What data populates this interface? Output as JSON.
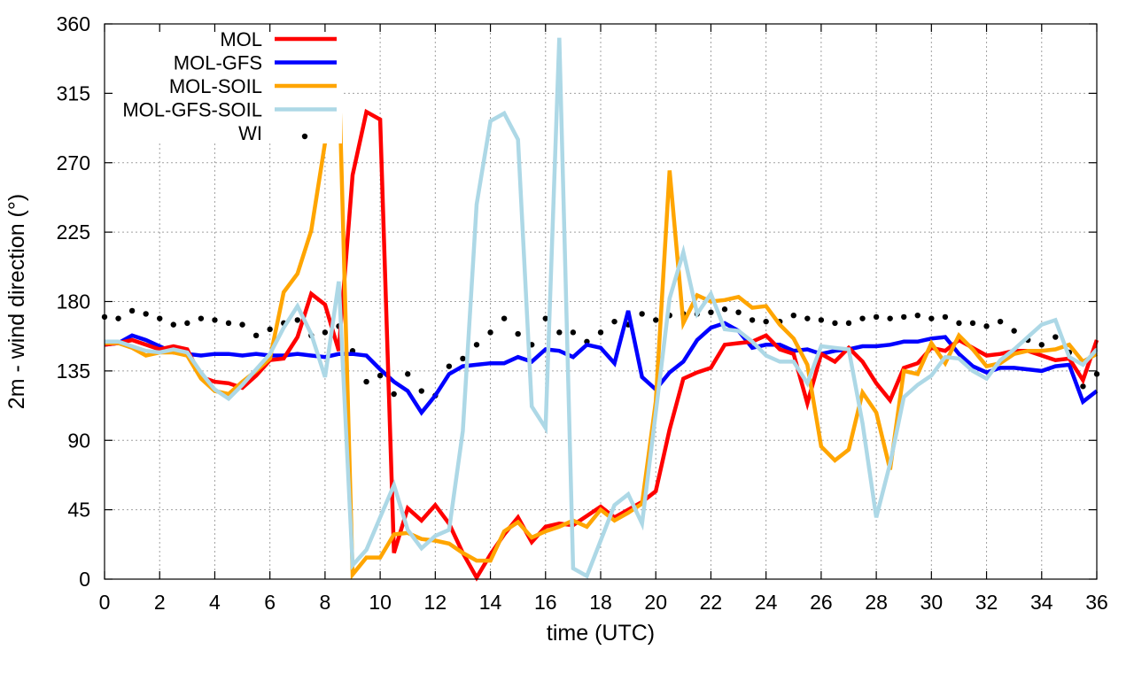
{
  "chart_data": {
    "type": "line",
    "title": "",
    "xlabel": "time (UTC)",
    "ylabel": "2m - wind direction (°)",
    "xlim": [
      0,
      36
    ],
    "ylim": [
      0,
      360
    ],
    "xticks": [
      0,
      2,
      4,
      6,
      8,
      10,
      12,
      14,
      16,
      18,
      20,
      22,
      24,
      26,
      28,
      30,
      32,
      34,
      36
    ],
    "yticks": [
      0,
      45,
      90,
      135,
      180,
      225,
      270,
      315,
      360
    ],
    "grid": true,
    "legend_position": "top-left",
    "series": [
      {
        "name": "MOL",
        "color": "#ff0000",
        "style": "line",
        "x": [
          0,
          0.5,
          1,
          1.5,
          2,
          2.5,
          3,
          3.5,
          4,
          4.5,
          5,
          5.5,
          6,
          6.5,
          7,
          7.5,
          8,
          8.5,
          9,
          9.5,
          10,
          10.5,
          11,
          11.5,
          12,
          12.5,
          13,
          13.5,
          14,
          14.5,
          15,
          15.5,
          16,
          16.5,
          17,
          17.5,
          18,
          18.5,
          19,
          19.5,
          20,
          20.5,
          21,
          21.5,
          22,
          22.5,
          23,
          23.5,
          24,
          24.5,
          25,
          25.5,
          26,
          26.5,
          27,
          27.5,
          28,
          28.5,
          29,
          29.5,
          30,
          30.5,
          31,
          31.5,
          32,
          32.5,
          33,
          33.5,
          34,
          34.5,
          35,
          35.5,
          36
        ],
        "values": [
          152,
          153,
          155,
          152,
          149,
          151,
          149,
          131,
          128,
          127,
          124,
          132,
          142,
          143,
          157,
          185,
          178,
          148,
          262,
          303,
          298,
          17,
          46,
          38,
          48,
          36,
          17,
          1,
          16,
          29,
          40,
          24,
          34,
          36,
          35,
          41,
          47,
          40,
          45,
          50,
          57,
          97,
          130,
          134,
          137,
          152,
          153,
          154,
          158,
          149,
          146,
          114,
          146,
          141,
          150,
          141,
          127,
          116,
          137,
          140,
          150,
          148,
          155,
          150,
          145,
          146,
          148,
          148,
          145,
          142,
          143,
          129,
          155
        ]
      },
      {
        "name": "MOL-GFS",
        "color": "#0000ff",
        "style": "line",
        "x": [
          0,
          0.5,
          1,
          1.5,
          2,
          2.5,
          3,
          3.5,
          4,
          4.5,
          5,
          5.5,
          6,
          6.5,
          7,
          7.5,
          8,
          8.5,
          9,
          9.5,
          10,
          10.5,
          11,
          11.5,
          12,
          12.5,
          13,
          13.5,
          14,
          14.5,
          15,
          15.5,
          16,
          16.5,
          17,
          17.5,
          18,
          18.5,
          19,
          19.5,
          20,
          20.5,
          21,
          21.5,
          22,
          22.5,
          23,
          23.5,
          24,
          24.5,
          25,
          25.5,
          26,
          26.5,
          27,
          27.5,
          28,
          28.5,
          29,
          29.5,
          30,
          30.5,
          31,
          31.5,
          32,
          32.5,
          33,
          33.5,
          34,
          34.5,
          35,
          35.5,
          36
        ],
        "values": [
          152,
          153,
          158,
          155,
          151,
          147,
          146,
          145,
          146,
          146,
          145,
          146,
          145,
          145,
          146,
          145,
          144,
          146,
          146,
          145,
          136,
          128,
          122,
          108,
          119,
          133,
          138,
          139,
          140,
          140,
          144,
          141,
          149,
          148,
          144,
          152,
          150,
          140,
          174,
          131,
          123,
          134,
          141,
          155,
          163,
          166,
          161,
          150,
          152,
          152,
          148,
          149,
          146,
          148,
          149,
          151,
          151,
          152,
          154,
          154,
          156,
          157,
          146,
          138,
          134,
          137,
          137,
          136,
          135,
          138,
          139,
          115,
          122
        ]
      },
      {
        "name": "MOL-SOIL",
        "color": "#ffa500",
        "style": "line",
        "x": [
          0,
          0.5,
          1,
          1.5,
          2,
          2.5,
          3,
          3.5,
          4,
          4.5,
          5,
          5.5,
          6,
          6.5,
          7,
          7.5,
          8,
          8.5,
          9,
          9.5,
          10,
          10.5,
          11,
          11.5,
          12,
          12.5,
          13,
          13.5,
          14,
          14.5,
          15,
          15.5,
          16,
          16.5,
          17,
          17.5,
          18,
          18.5,
          19,
          19.5,
          20,
          20.5,
          21,
          21.5,
          22,
          22.5,
          23,
          23.5,
          24,
          24.5,
          25,
          25.5,
          26,
          26.5,
          27,
          27.5,
          28,
          28.5,
          29,
          29.5,
          30,
          30.5,
          31,
          31.5,
          32,
          32.5,
          33,
          33.5,
          34,
          34.5,
          35,
          35.5,
          36
        ],
        "values": [
          153,
          153,
          150,
          145,
          147,
          147,
          145,
          130,
          122,
          120,
          128,
          135,
          143,
          186,
          198,
          226,
          283,
          331,
          3,
          14,
          14,
          29,
          30,
          26,
          25,
          23,
          17,
          12,
          12,
          31,
          37,
          27,
          31,
          34,
          38,
          34,
          45,
          38,
          43,
          49,
          115,
          265,
          166,
          184,
          180,
          181,
          183,
          176,
          177,
          165,
          156,
          139,
          86,
          77,
          84,
          121,
          108,
          71,
          135,
          133,
          153,
          140,
          158,
          149,
          138,
          140,
          146,
          148,
          148,
          149,
          152,
          141,
          146
        ]
      },
      {
        "name": "MOL-GFS-SOIL",
        "color": "#add8e6",
        "style": "line",
        "x": [
          0,
          0.5,
          1,
          1.5,
          2,
          2.5,
          3,
          3.5,
          4,
          4.5,
          5,
          5.5,
          6,
          6.5,
          7,
          7.5,
          8,
          8.5,
          9,
          9.5,
          10,
          10.5,
          11,
          11.5,
          12,
          12.5,
          13,
          13.5,
          14,
          14.5,
          15,
          15.5,
          16,
          16.5,
          17,
          17.5,
          18,
          18.5,
          19,
          19.5,
          20,
          20.5,
          21,
          21.5,
          22,
          22.5,
          23,
          23.5,
          24,
          24.5,
          25,
          25.5,
          26,
          26.5,
          27,
          27.5,
          28,
          28.5,
          29,
          29.5,
          30,
          30.5,
          31,
          31.5,
          32,
          32.5,
          33,
          33.5,
          34,
          34.5,
          35,
          35.5,
          36
        ],
        "values": [
          154,
          154,
          151,
          148,
          147,
          149,
          147,
          134,
          123,
          117,
          126,
          136,
          146,
          163,
          177,
          159,
          131,
          193,
          9,
          19,
          40,
          61,
          32,
          20,
          28,
          32,
          96,
          243,
          297,
          302,
          285,
          112,
          98,
          351,
          7,
          2,
          25,
          48,
          55,
          36,
          108,
          182,
          212,
          172,
          185,
          162,
          161,
          154,
          145,
          141,
          141,
          127,
          151,
          150,
          149,
          101,
          40,
          75,
          118,
          126,
          132,
          144,
          143,
          135,
          130,
          142,
          149,
          157,
          165,
          168,
          144,
          139,
          149
        ]
      },
      {
        "name": "WI",
        "color": "#000000",
        "style": "points",
        "x": [
          0,
          0.5,
          1,
          1.5,
          2,
          2.5,
          3,
          3.5,
          4,
          4.5,
          5,
          5.5,
          6,
          6.5,
          7,
          7.5,
          8,
          8.5,
          9,
          9.5,
          10,
          10.5,
          11,
          11.5,
          12,
          12.5,
          13,
          13.5,
          14,
          14.5,
          15,
          15.5,
          16,
          16.5,
          17,
          17.5,
          18,
          18.5,
          19,
          19.5,
          20,
          20.5,
          21,
          21.5,
          22,
          22.5,
          23,
          23.5,
          24,
          24.5,
          25,
          25.5,
          26,
          26.5,
          27,
          27.5,
          28,
          28.5,
          29,
          29.5,
          30,
          30.5,
          31,
          31.5,
          32,
          32.5,
          33,
          33.5,
          34,
          34.5,
          35,
          35.5,
          36
        ],
        "values": [
          170,
          169,
          174,
          172,
          169,
          165,
          166,
          169,
          168,
          166,
          165,
          158,
          162,
          166,
          168,
          158,
          160,
          164,
          148,
          128,
          132,
          120,
          133,
          122,
          119,
          138,
          143,
          152,
          160,
          169,
          159,
          152,
          169,
          160,
          160,
          154,
          160,
          167,
          165,
          172,
          168,
          171,
          172,
          172,
          173,
          175,
          173,
          168,
          167,
          167,
          171,
          169,
          168,
          166,
          166,
          169,
          170,
          169,
          170,
          171,
          169,
          170,
          166,
          166,
          164,
          167,
          161,
          155,
          152,
          157,
          147,
          125,
          133
        ]
      }
    ]
  }
}
